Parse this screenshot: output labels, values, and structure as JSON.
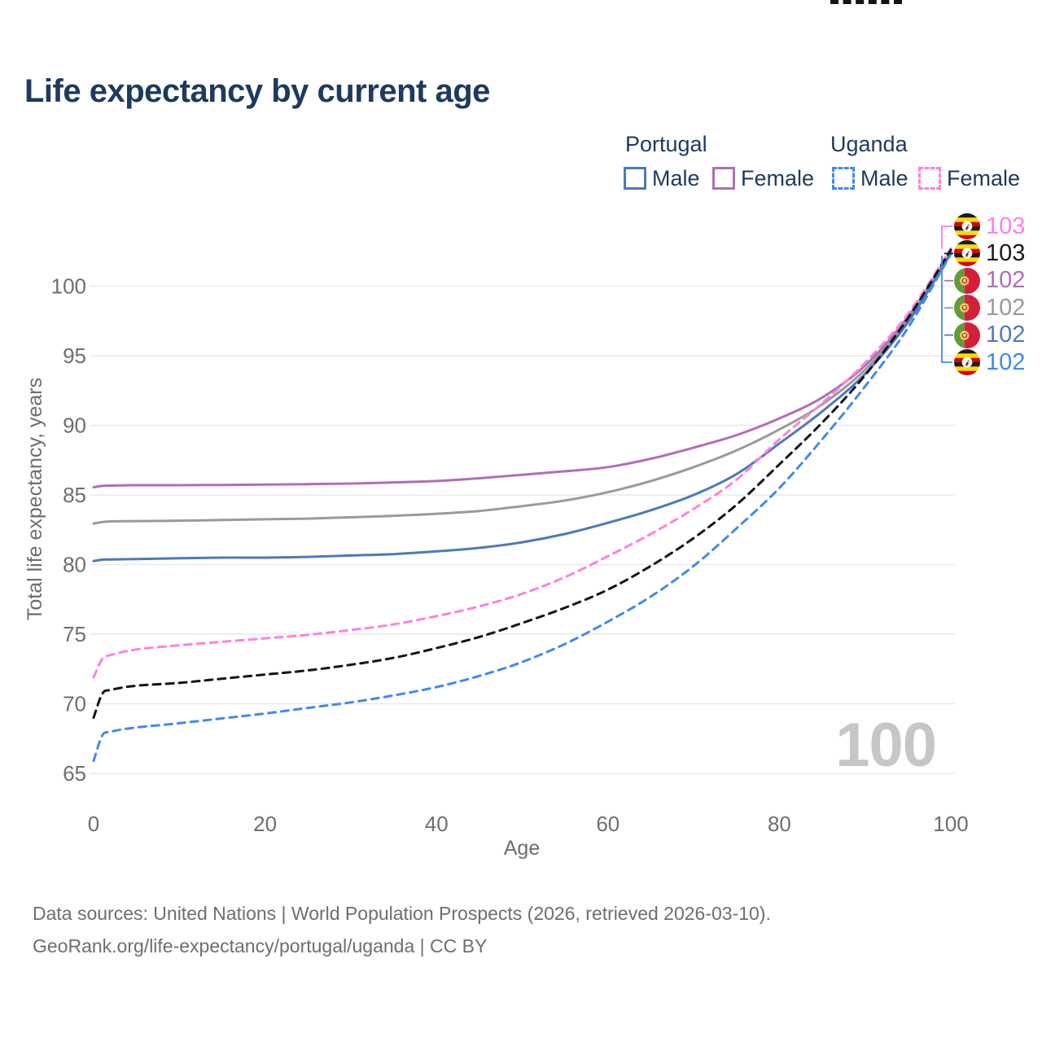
{
  "title": "Life expectancy by current age",
  "legend": {
    "groups": [
      {
        "label": "Portugal",
        "line_style": "solid",
        "items": [
          {
            "label": "Male",
            "color": "#4d79bb"
          },
          {
            "label": "Female",
            "color": "#b06fb5"
          }
        ]
      },
      {
        "label": "Uganda",
        "line_style": "dashed",
        "items": [
          {
            "label": "Male",
            "color": "#4189f0"
          },
          {
            "label": "Female",
            "color": "#ff80e0"
          }
        ]
      }
    ]
  },
  "watermark": "100",
  "end_labels": [
    {
      "country": "Uganda",
      "value": "103",
      "color": "#ff80e0"
    },
    {
      "country": "Uganda",
      "value": "103",
      "color": "#1a1a1a"
    },
    {
      "country": "Portugal",
      "value": "102",
      "color": "#b06fb5"
    },
    {
      "country": "Portugal",
      "value": "102",
      "color": "#9a9a9a"
    },
    {
      "country": "Portugal",
      "value": "102",
      "color": "#4d79bb"
    },
    {
      "country": "Uganda",
      "value": "102",
      "color": "#4189f0"
    }
  ],
  "footer": {
    "line1": "Data sources: United Nations | World Population Prospects (2026, retrieved 2026-03-10).",
    "line2": "GeoRank.org/life-expectancy/portugal/uganda | CC BY"
  },
  "chart_data": {
    "type": "line",
    "title": "Life expectancy by current age",
    "xlabel": "Age",
    "ylabel": "Total life expectancy, years",
    "xlim": [
      0,
      100
    ],
    "ylim": [
      65,
      100
    ],
    "xticks": [
      0,
      20,
      40,
      60,
      80,
      100
    ],
    "yticks": [
      65,
      70,
      75,
      80,
      85,
      90,
      95,
      100
    ],
    "grid": "horizontal",
    "legend_position": "top-right",
    "x": [
      0,
      1,
      2,
      5,
      10,
      15,
      20,
      25,
      30,
      35,
      40,
      45,
      50,
      55,
      60,
      65,
      70,
      75,
      80,
      85,
      90,
      95,
      100
    ],
    "series": [
      {
        "name": "Portugal Female",
        "color": "#b06fb5",
        "dashed": false,
        "values": [
          85.55,
          85.65,
          85.67,
          85.7,
          85.7,
          85.72,
          85.75,
          85.78,
          85.82,
          85.9,
          86.0,
          86.2,
          86.45,
          86.7,
          87.0,
          87.6,
          88.4,
          89.3,
          90.5,
          92.0,
          94.3,
          97.8,
          102.45
        ]
      },
      {
        "name": "Portugal Both sexes",
        "color": "#9a9a9a",
        "dashed": false,
        "values": [
          82.95,
          83.05,
          83.1,
          83.12,
          83.15,
          83.2,
          83.25,
          83.3,
          83.4,
          83.5,
          83.65,
          83.85,
          84.2,
          84.6,
          85.2,
          86.0,
          87.0,
          88.2,
          89.7,
          91.5,
          94.0,
          97.6,
          102.4
        ]
      },
      {
        "name": "Portugal Male",
        "color": "#4d79bb",
        "dashed": false,
        "values": [
          80.25,
          80.35,
          80.37,
          80.4,
          80.45,
          80.5,
          80.5,
          80.55,
          80.65,
          80.75,
          80.95,
          81.2,
          81.6,
          82.2,
          83.0,
          83.9,
          85.0,
          86.5,
          88.7,
          91.0,
          93.7,
          97.4,
          102.35
        ]
      },
      {
        "name": "Uganda Female",
        "color": "#ff80e0",
        "dashed": true,
        "values": [
          71.9,
          73.2,
          73.5,
          73.9,
          74.2,
          74.45,
          74.7,
          74.95,
          75.3,
          75.7,
          76.3,
          77.0,
          77.9,
          79.1,
          80.6,
          82.2,
          84.0,
          86.1,
          89.0,
          91.6,
          94.5,
          98.0,
          102.7
        ]
      },
      {
        "name": "Uganda Both sexes",
        "color": "#141414",
        "dashed": true,
        "values": [
          69.0,
          70.7,
          71.0,
          71.3,
          71.5,
          71.8,
          72.1,
          72.4,
          72.8,
          73.3,
          74.0,
          74.8,
          75.8,
          76.9,
          78.2,
          79.9,
          81.9,
          84.3,
          87.2,
          90.2,
          93.6,
          97.7,
          102.6
        ]
      },
      {
        "name": "Uganda Male",
        "color": "#4189f0",
        "dashed": true,
        "values": [
          65.9,
          67.7,
          68.0,
          68.3,
          68.6,
          68.95,
          69.3,
          69.7,
          70.1,
          70.6,
          71.2,
          72.0,
          73.0,
          74.3,
          75.9,
          77.7,
          79.9,
          82.6,
          85.5,
          89.0,
          92.8,
          97.0,
          102.3
        ]
      }
    ]
  }
}
